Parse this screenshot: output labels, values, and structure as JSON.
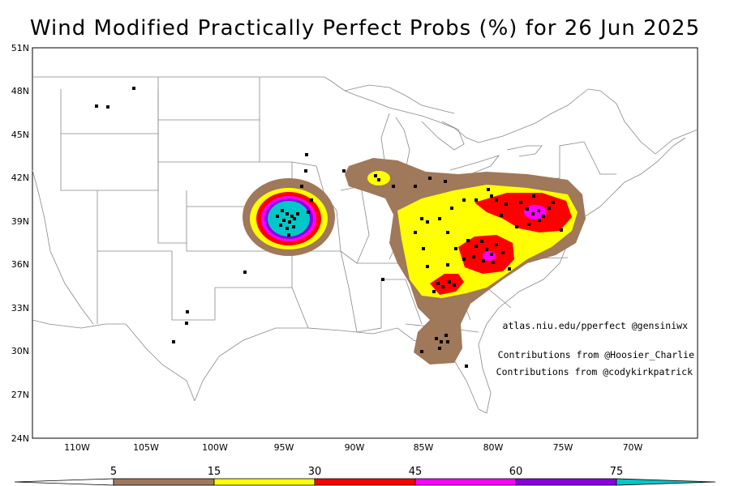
{
  "title": "Wind Modified Practically Perfect Probs (%) for 26 Jun 2025",
  "lat_labels": [
    "51N",
    "48N",
    "45N",
    "42N",
    "39N",
    "36N",
    "33N",
    "30N",
    "27N",
    "24N"
  ],
  "lon_labels": [
    "110W",
    "105W",
    "100W",
    "95W",
    "90W",
    "85W",
    "80W",
    "75W",
    "70W"
  ],
  "credits": {
    "site": "atlas.niu.edu/pperfect @gensiniwx",
    "contrib1": "Contributions from @Hoosier_Charlie",
    "contrib2": "Contributions from @codykirkpatrick"
  },
  "colorbar": {
    "labels": [
      "5",
      "15",
      "30",
      "45",
      "60",
      "75"
    ],
    "colors": {
      "5": "#a0785a",
      "15": "#ffff00",
      "30": "#ff0000",
      "45": "#ff00ff",
      "60": "#8a00e0",
      "75": "#00c8c8"
    }
  },
  "map_colors": {
    "brown": "#a0785a",
    "yellow": "#ffff00",
    "red": "#ff0000",
    "magenta": "#ff00ff",
    "purple": "#8a00e0",
    "cyan": "#00c8c8",
    "boundary": "#808080",
    "report": "#000000"
  }
}
